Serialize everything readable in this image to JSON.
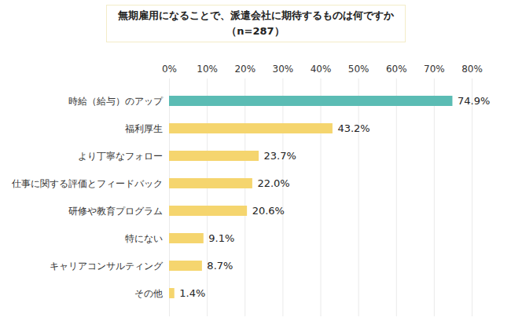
{
  "chart_data": {
    "type": "bar",
    "orientation": "horizontal",
    "title": "無期雇用になることで、派遣会社に期待するものは何ですか",
    "subtitle": "（n=287）",
    "categories": [
      "時給（給与）のアップ",
      "福利厚生",
      "より丁寧なフォロー",
      "仕事に関する評価とフィードバック",
      "研修や教育プログラム",
      "特にない",
      "キャリアコンサルティング",
      "その他"
    ],
    "values": [
      74.9,
      43.2,
      23.7,
      22.0,
      20.6,
      9.1,
      8.7,
      1.4
    ],
    "value_labels": [
      "74.9%",
      "43.2%",
      "23.7%",
      "22.0%",
      "20.6%",
      "9.1%",
      "8.7%",
      "1.4%"
    ],
    "colors": [
      "#5bbcb4",
      "#f5d56e",
      "#f5d56e",
      "#f5d56e",
      "#f5d56e",
      "#f5d56e",
      "#f5d56e",
      "#f5d56e"
    ],
    "xlim": [
      0,
      80
    ],
    "xticks": [
      {
        "value": 0,
        "label": "0%"
      },
      {
        "value": 10,
        "label": "10%"
      },
      {
        "value": 20,
        "label": "20%"
      },
      {
        "value": 30,
        "label": "30%"
      },
      {
        "value": 40,
        "label": "40%"
      },
      {
        "value": 50,
        "label": "50%"
      },
      {
        "value": 60,
        "label": "60%"
      },
      {
        "value": 70,
        "label": "70%"
      },
      {
        "value": 80,
        "label": "80%"
      }
    ],
    "grid": true,
    "data_labels": true
  }
}
